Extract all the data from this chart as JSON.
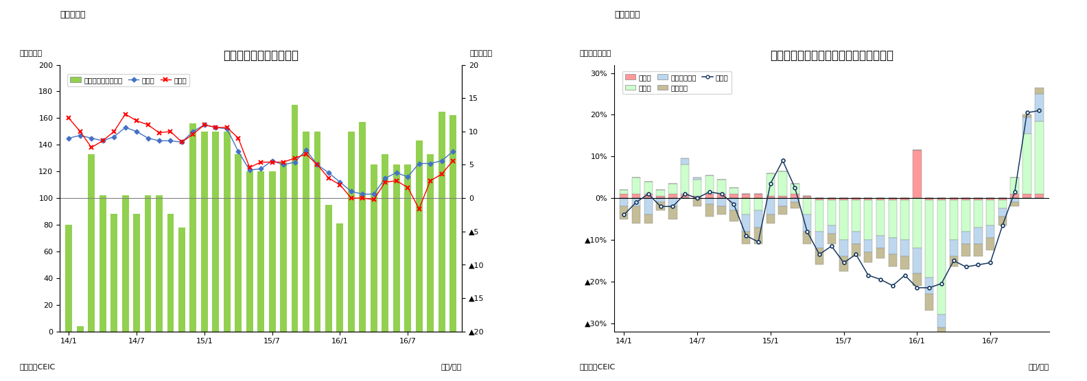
{
  "chart1": {
    "title": "インドネシアの貿易収支",
    "subtitle": "（図表７）",
    "ylabel_left": "（億ドル）",
    "ylabel_right": "（億ドル）",
    "xlabel": "（年/月）",
    "source": "（資料）CEIC",
    "ylim_left": [
      0,
      200
    ],
    "ylim_right": [
      -20,
      20
    ],
    "yticks_left": [
      0,
      20,
      40,
      60,
      80,
      100,
      120,
      140,
      160,
      180,
      200
    ],
    "yticks_right_labels": [
      "▲20",
      "▲15",
      "▲10",
      "▲5",
      "0",
      "5",
      "10",
      "15",
      "20"
    ],
    "yticks_right_vals": [
      -20,
      -15,
      -10,
      -5,
      0,
      5,
      10,
      15,
      20
    ],
    "xtick_labels": [
      "14/1",
      "14/7",
      "15/1",
      "15/7",
      "16/1",
      "16/7"
    ],
    "bar_color": "#92D050",
    "line1_color": "#4472C4",
    "line2_color": "#FF0000",
    "bar_values": [
      80,
      4,
      133,
      102,
      88,
      102,
      88,
      102,
      102,
      88,
      78,
      156,
      150,
      150,
      150,
      133,
      120,
      120,
      120,
      127,
      170,
      150,
      150,
      95,
      81,
      150,
      157,
      125,
      133,
      125,
      125,
      143,
      133,
      165,
      162
    ],
    "export_vals": [
      145,
      147,
      145,
      143,
      146,
      153,
      150,
      145,
      143,
      143,
      142,
      150,
      155,
      153,
      152,
      135,
      121,
      122,
      128,
      125,
      127,
      136,
      125,
      119,
      112,
      105,
      103,
      103,
      115,
      119,
      116,
      126,
      126,
      128,
      135
    ],
    "import_vals": [
      160,
      150,
      138,
      143,
      150,
      163,
      158,
      155,
      149,
      150,
      142,
      148,
      155,
      153,
      153,
      145,
      123,
      127,
      127,
      127,
      130,
      133,
      125,
      115,
      110,
      100,
      100,
      99,
      112,
      113,
      108,
      92,
      113,
      118,
      128
    ]
  },
  "chart2": {
    "title": "インドネシア　輸出の伸び率（品目別）",
    "subtitle": "（図表８）",
    "ylabel_left": "（前年同月比）",
    "xlabel": "（年/月）",
    "source": "（資料）CEIC",
    "ylim": [
      -0.32,
      0.32
    ],
    "yticks_vals": [
      0.3,
      0.2,
      0.1,
      0.0,
      -0.1,
      -0.2,
      -0.3
    ],
    "yticks_labels": [
      "30%",
      "20%",
      "10%",
      "0%",
      "▲10%",
      "▲20%",
      "▲30%"
    ],
    "xtick_labels": [
      "14/1",
      "14/7",
      "15/1",
      "15/7",
      "16/1",
      "16/7"
    ],
    "color_agri": "#FF9999",
    "color_manuf": "#CCFFCC",
    "color_mining": "#BDD7EE",
    "color_oil": "#C4BD97",
    "line_color": "#17375E",
    "agri": [
      0.01,
      0.01,
      0.01,
      0.005,
      0.01,
      0.01,
      0.005,
      0.01,
      0.01,
      0.01,
      0.01,
      0.01,
      0.005,
      0.005,
      0.01,
      0.005,
      -0.005,
      -0.005,
      -0.005,
      -0.005,
      -0.005,
      -0.005,
      -0.005,
      -0.005,
      0.115,
      -0.005,
      -0.005,
      -0.005,
      -0.005,
      -0.005,
      -0.005,
      -0.005,
      0.01,
      0.01,
      0.01
    ],
    "manuf": [
      0.01,
      0.04,
      0.03,
      0.015,
      0.025,
      0.07,
      0.04,
      0.045,
      0.035,
      0.015,
      -0.04,
      -0.03,
      0.055,
      0.06,
      0.025,
      -0.04,
      -0.075,
      -0.06,
      -0.095,
      -0.075,
      -0.095,
      -0.085,
      -0.09,
      -0.095,
      -0.12,
      -0.185,
      -0.275,
      -0.095,
      -0.075,
      -0.065,
      -0.06,
      -0.02,
      0.04,
      0.145,
      0.175
    ],
    "mining": [
      -0.02,
      -0.02,
      -0.04,
      -0.01,
      -0.02,
      0.015,
      0.005,
      -0.015,
      -0.02,
      -0.03,
      -0.04,
      -0.04,
      -0.04,
      -0.02,
      -0.01,
      -0.04,
      -0.04,
      -0.02,
      -0.04,
      -0.03,
      -0.03,
      -0.03,
      -0.04,
      -0.04,
      -0.06,
      -0.04,
      -0.03,
      -0.04,
      -0.03,
      -0.04,
      -0.03,
      -0.02,
      -0.01,
      0.04,
      0.065
    ],
    "oil": [
      -0.03,
      -0.04,
      -0.02,
      -0.02,
      -0.03,
      0.0,
      -0.02,
      -0.03,
      -0.02,
      -0.025,
      -0.03,
      -0.04,
      -0.02,
      -0.02,
      -0.015,
      -0.03,
      -0.04,
      -0.025,
      -0.035,
      -0.03,
      -0.025,
      -0.025,
      -0.03,
      -0.03,
      -0.03,
      -0.04,
      -0.02,
      -0.025,
      -0.03,
      -0.03,
      -0.03,
      -0.02,
      -0.01,
      0.005,
      0.015
    ],
    "export_line": [
      -0.04,
      -0.01,
      0.01,
      -0.02,
      -0.02,
      0.01,
      0.0,
      0.015,
      0.01,
      -0.015,
      -0.09,
      -0.105,
      0.035,
      0.09,
      0.025,
      -0.08,
      -0.135,
      -0.115,
      -0.155,
      -0.135,
      -0.185,
      -0.195,
      -0.21,
      -0.185,
      -0.215,
      -0.215,
      -0.205,
      -0.15,
      -0.165,
      -0.16,
      -0.155,
      -0.065,
      0.015,
      0.205,
      0.21
    ]
  }
}
